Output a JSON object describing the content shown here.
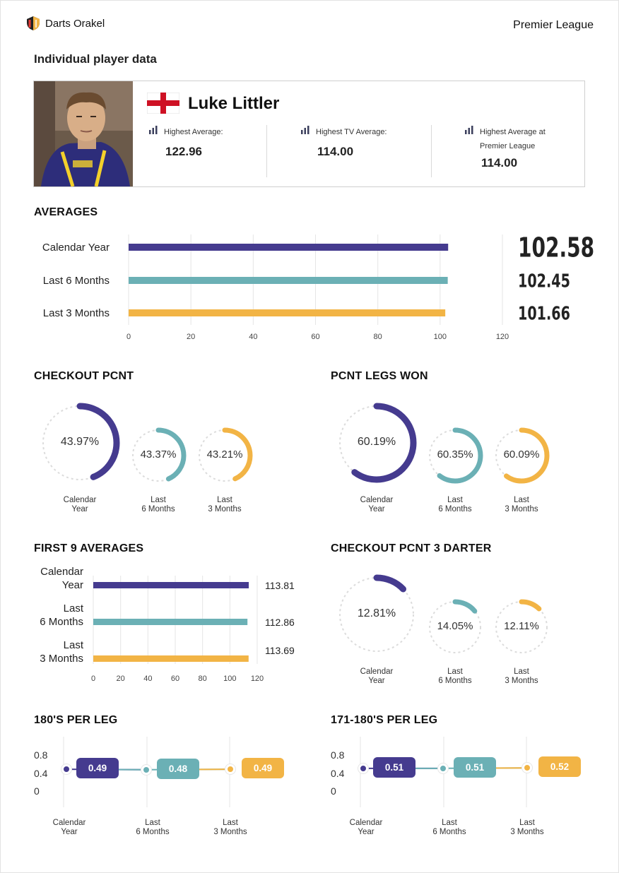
{
  "header": {
    "brand": "Darts Orakel",
    "league": "Premier League",
    "title": "Individual player data"
  },
  "player": {
    "name": "Luke Littler",
    "stats": [
      {
        "label": "Highest Average:",
        "value": "122.96"
      },
      {
        "label": "Highest TV Average:",
        "value": "114.00"
      },
      {
        "label": "Highest Average at Premier League",
        "value": "114.00"
      }
    ]
  },
  "colors": {
    "purple": "#453b8f",
    "teal": "#6bb0b5",
    "yellow": "#f2b445",
    "grid": "#e5e5e5",
    "track": "#dcdcdc"
  },
  "averages": {
    "title": "AVERAGES",
    "chart_data": {
      "type": "bar",
      "categories": [
        "Calendar Year",
        "Last 6 Months",
        "Last 3 Months"
      ],
      "values": [
        102.58,
        102.45,
        101.66
      ],
      "value_labels": [
        "102.58",
        "102.45",
        "101.66"
      ],
      "xlim": [
        0,
        120
      ],
      "ticks": [
        "0",
        "20",
        "40",
        "60",
        "80",
        "100",
        "120"
      ]
    }
  },
  "checkout": {
    "title": "CHECKOUT PCNT",
    "chart_data": {
      "type": "pie",
      "categories": [
        "Calendar Year",
        "Last 6 Months",
        "Last 3 Months"
      ],
      "values": [
        43.97,
        43.37,
        43.21
      ]
    },
    "items": [
      {
        "value": "43.97%",
        "cap1": "Calendar",
        "cap2": "Year"
      },
      {
        "value": "43.37%",
        "cap1": "Last",
        "cap2": "6 Months"
      },
      {
        "value": "43.21%",
        "cap1": "Last",
        "cap2": "3 Months"
      }
    ]
  },
  "legs": {
    "title": "PCNT LEGS WON",
    "chart_data": {
      "type": "pie",
      "categories": [
        "Calendar Year",
        "Last 6 Months",
        "Last 3 Months"
      ],
      "values": [
        60.19,
        60.35,
        60.09
      ]
    },
    "items": [
      {
        "value": "60.19%",
        "cap1": "Calendar",
        "cap2": "Year"
      },
      {
        "value": "60.35%",
        "cap1": "Last",
        "cap2": "6 Months"
      },
      {
        "value": "60.09%",
        "cap1": "Last",
        "cap2": "3 Months"
      }
    ]
  },
  "first9": {
    "title": "FIRST 9 AVERAGES",
    "labels": [
      [
        "Calendar",
        "Year"
      ],
      [
        "Last",
        "6 Months"
      ],
      [
        "Last",
        "3 Months"
      ]
    ],
    "chart_data": {
      "type": "bar",
      "categories": [
        "Calendar Year",
        "Last 6 Months",
        "Last 3 Months"
      ],
      "values": [
        113.81,
        112.86,
        113.69
      ],
      "value_labels": [
        "113.81",
        "112.86",
        "113.69"
      ],
      "xlim": [
        0,
        120
      ],
      "ticks": [
        "0",
        "20",
        "40",
        "60",
        "80",
        "100",
        "120"
      ]
    }
  },
  "checkout3": {
    "title": "CHECKOUT PCNT 3 DARTER",
    "chart_data": {
      "type": "pie",
      "categories": [
        "Calendar Year",
        "Last 6 Months",
        "Last 3 Months"
      ],
      "values": [
        12.81,
        14.05,
        12.11
      ]
    },
    "items": [
      {
        "value": "12.81%",
        "cap1": "Calendar",
        "cap2": "Year"
      },
      {
        "value": "14.05%",
        "cap1": "Last",
        "cap2": "6 Months"
      },
      {
        "value": "12.11%",
        "cap1": "Last",
        "cap2": "3 Months"
      }
    ]
  },
  "per180": {
    "title": "180'S PER LEG",
    "chart_data": {
      "type": "line",
      "categories": [
        "Calendar Year",
        "Last 6 Months",
        "Last 3 Months"
      ],
      "values": [
        0.49,
        0.48,
        0.49
      ],
      "ylim": [
        0,
        0.8
      ]
    },
    "value_labels": [
      "0.49",
      "0.48",
      "0.49"
    ],
    "yticks": [
      "0.8",
      "0.4",
      "0"
    ],
    "caps": [
      [
        "Calendar",
        "Year"
      ],
      [
        "Last",
        "6 Months"
      ],
      [
        "Last",
        "3 Months"
      ]
    ]
  },
  "per171": {
    "title": "171-180'S PER LEG",
    "chart_data": {
      "type": "line",
      "categories": [
        "Calendar Year",
        "Last 6 Months",
        "Last 3 Months"
      ],
      "values": [
        0.51,
        0.51,
        0.52
      ],
      "ylim": [
        0,
        0.8
      ]
    },
    "value_labels": [
      "0.51",
      "0.51",
      "0.52"
    ],
    "yticks": [
      "0.8",
      "0.4",
      "0"
    ],
    "caps": [
      [
        "Calendar",
        "Year"
      ],
      [
        "Last",
        "6 Months"
      ],
      [
        "Last",
        "3 Months"
      ]
    ]
  }
}
